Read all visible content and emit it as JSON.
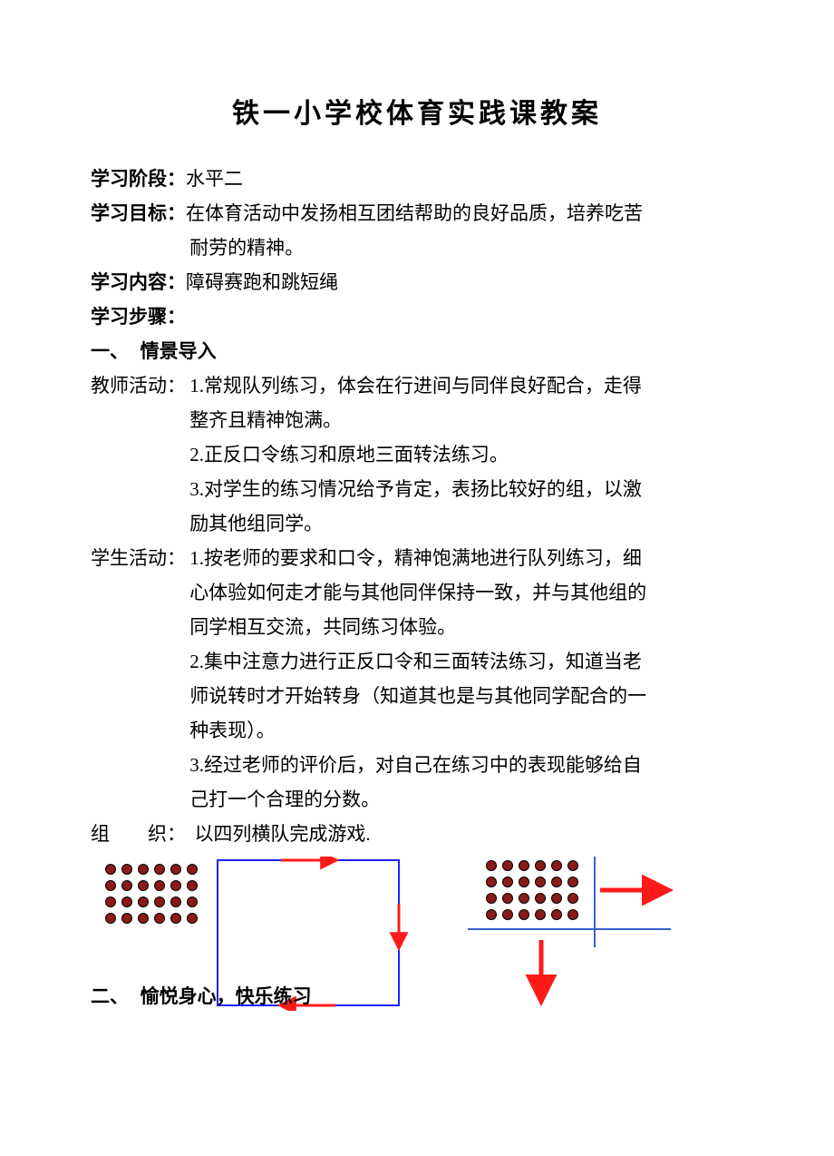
{
  "title": "铁一小学校体育实践课教案",
  "labels": {
    "stage": "学习阶段：",
    "goal": "学习目标：",
    "content": "学习内容：",
    "steps": "学习步骤："
  },
  "stage_value": "水平二",
  "goal_line1": "在体育活动中发扬相互团结帮助的良好品质，培养吃苦",
  "goal_line2": "耐劳的精神。",
  "content_value": "障碍赛跑和跳短绳",
  "section1_num": "一、",
  "section1_title": "情景导入",
  "teacher_label": "教师活动：",
  "t1a": "1.常规队列练习，体会在行进间与同伴良好配合，走得",
  "t1b": "整齐且精神饱满。",
  "t2": "2.正反口令练习和原地三面转法练习。",
  "t3a": "3.对学生的练习情况给予肯定，表扬比较好的组，以激",
  "t3b": "励其他组同学。",
  "student_label": "学生活动：",
  "s1a": "1.按老师的要求和口令，精神饱满地进行队列练习，细",
  "s1b": "心体验如何走才能与其他同伴保持一致，并与其他组的",
  "s1c": "同学相互交流，共同练习体验。",
  "s2a": "2.集中注意力进行正反口令和三面转法练习，知道当老",
  "s2b": "师说转时才开始转身（知道其也是与其他同学配合的一",
  "s2c": "种表现）。",
  "s3a": "3.经过老师的评价后，对自己在练习中的表现能够给自",
  "s3b": "己打一个合理的分数。",
  "org_label": "组　　织：",
  "org_value": " 以四列横队完成游戏.",
  "section2_num": "二、",
  "section2_title": "愉悦身心，快乐练习",
  "diagram": {
    "dot_fill": "#8b1a1a",
    "dot_stroke": "#000000",
    "dot_radius": 5.5,
    "dot_gap": 18,
    "rows": 4,
    "cols": 6,
    "rect_stroke": "#2020ff",
    "rect_w": 200,
    "rect_h": 160,
    "arrow_color": "#ff1a1a",
    "line_stroke": "#3a5fcd"
  }
}
